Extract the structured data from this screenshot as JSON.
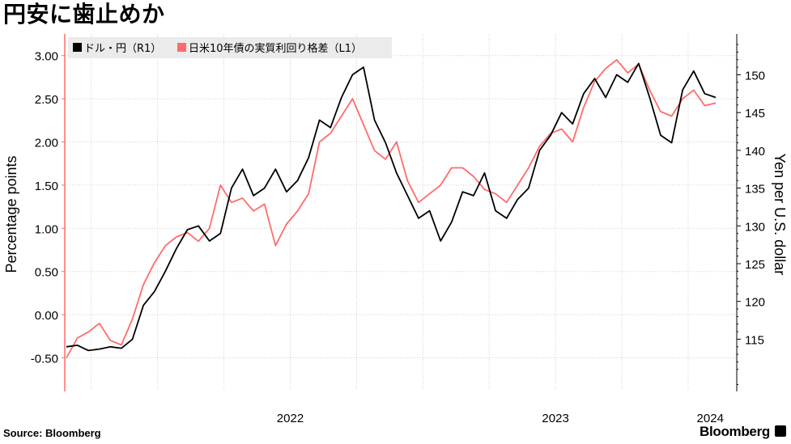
{
  "title": "円安に歯止めか",
  "source": "Source:  Bloomberg",
  "brand": "Bloomberg",
  "chart_data": {
    "type": "line",
    "xlabel": "",
    "y_left_label": "Percentage points",
    "y_right_label": "Yen per U.S. dollar",
    "y_left_lim": [
      -0.87,
      3.25
    ],
    "y_right_lim": [
      108.3,
      155.4
    ],
    "y_left_ticks": [
      "3.00",
      "2.50",
      "2.00",
      "1.50",
      "1.00",
      "0.50",
      "0.00",
      "-0.50"
    ],
    "y_right_ticks": [
      "150",
      "145",
      "140",
      "135",
      "130",
      "125",
      "120",
      "115"
    ],
    "x_ticks": [
      "2022",
      "2023",
      "2024"
    ],
    "grid": true,
    "legend_position": "top-left",
    "series": [
      {
        "name": "ドル・円（R1）",
        "axis": "right",
        "color": "#000000",
        "x": [
          "2021-09",
          "2021-10",
          "2021-10",
          "2021-11",
          "2021-11",
          "2021-12",
          "2021-12",
          "2022-01",
          "2022-01",
          "2022-02",
          "2022-02",
          "2022-03",
          "2022-03",
          "2022-04",
          "2022-04",
          "2022-05",
          "2022-05",
          "2022-06",
          "2022-06",
          "2022-07",
          "2022-07",
          "2022-08",
          "2022-08",
          "2022-09",
          "2022-09",
          "2022-10",
          "2022-10",
          "2022-11",
          "2022-11",
          "2022-12",
          "2022-12",
          "2023-01",
          "2023-01",
          "2023-02",
          "2023-02",
          "2023-03",
          "2023-03",
          "2023-04",
          "2023-04",
          "2023-05",
          "2023-05",
          "2023-06",
          "2023-06",
          "2023-07",
          "2023-07",
          "2023-08",
          "2023-08",
          "2023-09",
          "2023-09",
          "2023-10",
          "2023-10",
          "2023-11",
          "2023-11",
          "2023-12",
          "2023-12",
          "2024-01",
          "2024-01",
          "2024-02",
          "2024-02",
          "2024-03"
        ],
        "values": [
          114.0,
          114.2,
          113.5,
          113.7,
          114.0,
          113.8,
          115.0,
          119.5,
          121.3,
          124.0,
          127.0,
          129.5,
          130.0,
          128.0,
          129.0,
          135.0,
          137.5,
          134.0,
          135.0,
          137.5,
          134.5,
          136.0,
          139.0,
          144.0,
          143.0,
          147.0,
          150.0,
          151.0,
          144.0,
          141.0,
          137.0,
          134.0,
          131.0,
          132.0,
          128.0,
          130.5,
          134.5,
          134.0,
          137.0,
          132.0,
          131.0,
          133.5,
          135.0,
          140.0,
          142.0,
          145.0,
          143.5,
          147.5,
          149.5,
          147.0,
          150.0,
          149.0,
          151.5,
          147.0,
          142.0,
          141.0,
          148.0,
          150.5,
          147.5,
          147.0
        ]
      },
      {
        "name": "日米10年債の実質利回り格差（L1）",
        "axis": "left",
        "color": "#ff6b6b",
        "x": [
          "2021-09",
          "2021-10",
          "2021-10",
          "2021-11",
          "2021-11",
          "2021-12",
          "2021-12",
          "2022-01",
          "2022-01",
          "2022-02",
          "2022-02",
          "2022-03",
          "2022-03",
          "2022-04",
          "2022-04",
          "2022-05",
          "2022-05",
          "2022-06",
          "2022-06",
          "2022-07",
          "2022-07",
          "2022-08",
          "2022-08",
          "2022-09",
          "2022-09",
          "2022-10",
          "2022-10",
          "2022-11",
          "2022-11",
          "2022-12",
          "2022-12",
          "2023-01",
          "2023-01",
          "2023-02",
          "2023-02",
          "2023-03",
          "2023-03",
          "2023-04",
          "2023-04",
          "2023-05",
          "2023-05",
          "2023-06",
          "2023-06",
          "2023-07",
          "2023-07",
          "2023-08",
          "2023-08",
          "2023-09",
          "2023-09",
          "2023-10",
          "2023-10",
          "2023-11",
          "2023-11",
          "2023-12",
          "2023-12",
          "2024-01",
          "2024-01",
          "2024-02",
          "2024-02",
          "2024-03"
        ],
        "values": [
          -0.5,
          -0.27,
          -0.2,
          -0.1,
          -0.3,
          -0.35,
          -0.05,
          0.35,
          0.6,
          0.8,
          0.9,
          0.95,
          0.85,
          1.0,
          1.5,
          1.3,
          1.35,
          1.2,
          1.28,
          0.8,
          1.05,
          1.2,
          1.4,
          2.0,
          2.1,
          2.3,
          2.5,
          2.2,
          1.9,
          1.8,
          2.0,
          1.55,
          1.3,
          1.4,
          1.5,
          1.7,
          1.7,
          1.6,
          1.45,
          1.4,
          1.3,
          1.5,
          1.7,
          1.95,
          2.1,
          2.15,
          2.0,
          2.4,
          2.7,
          2.85,
          2.95,
          2.8,
          2.9,
          2.6,
          2.35,
          2.3,
          2.5,
          2.6,
          2.42,
          2.45
        ]
      }
    ]
  }
}
